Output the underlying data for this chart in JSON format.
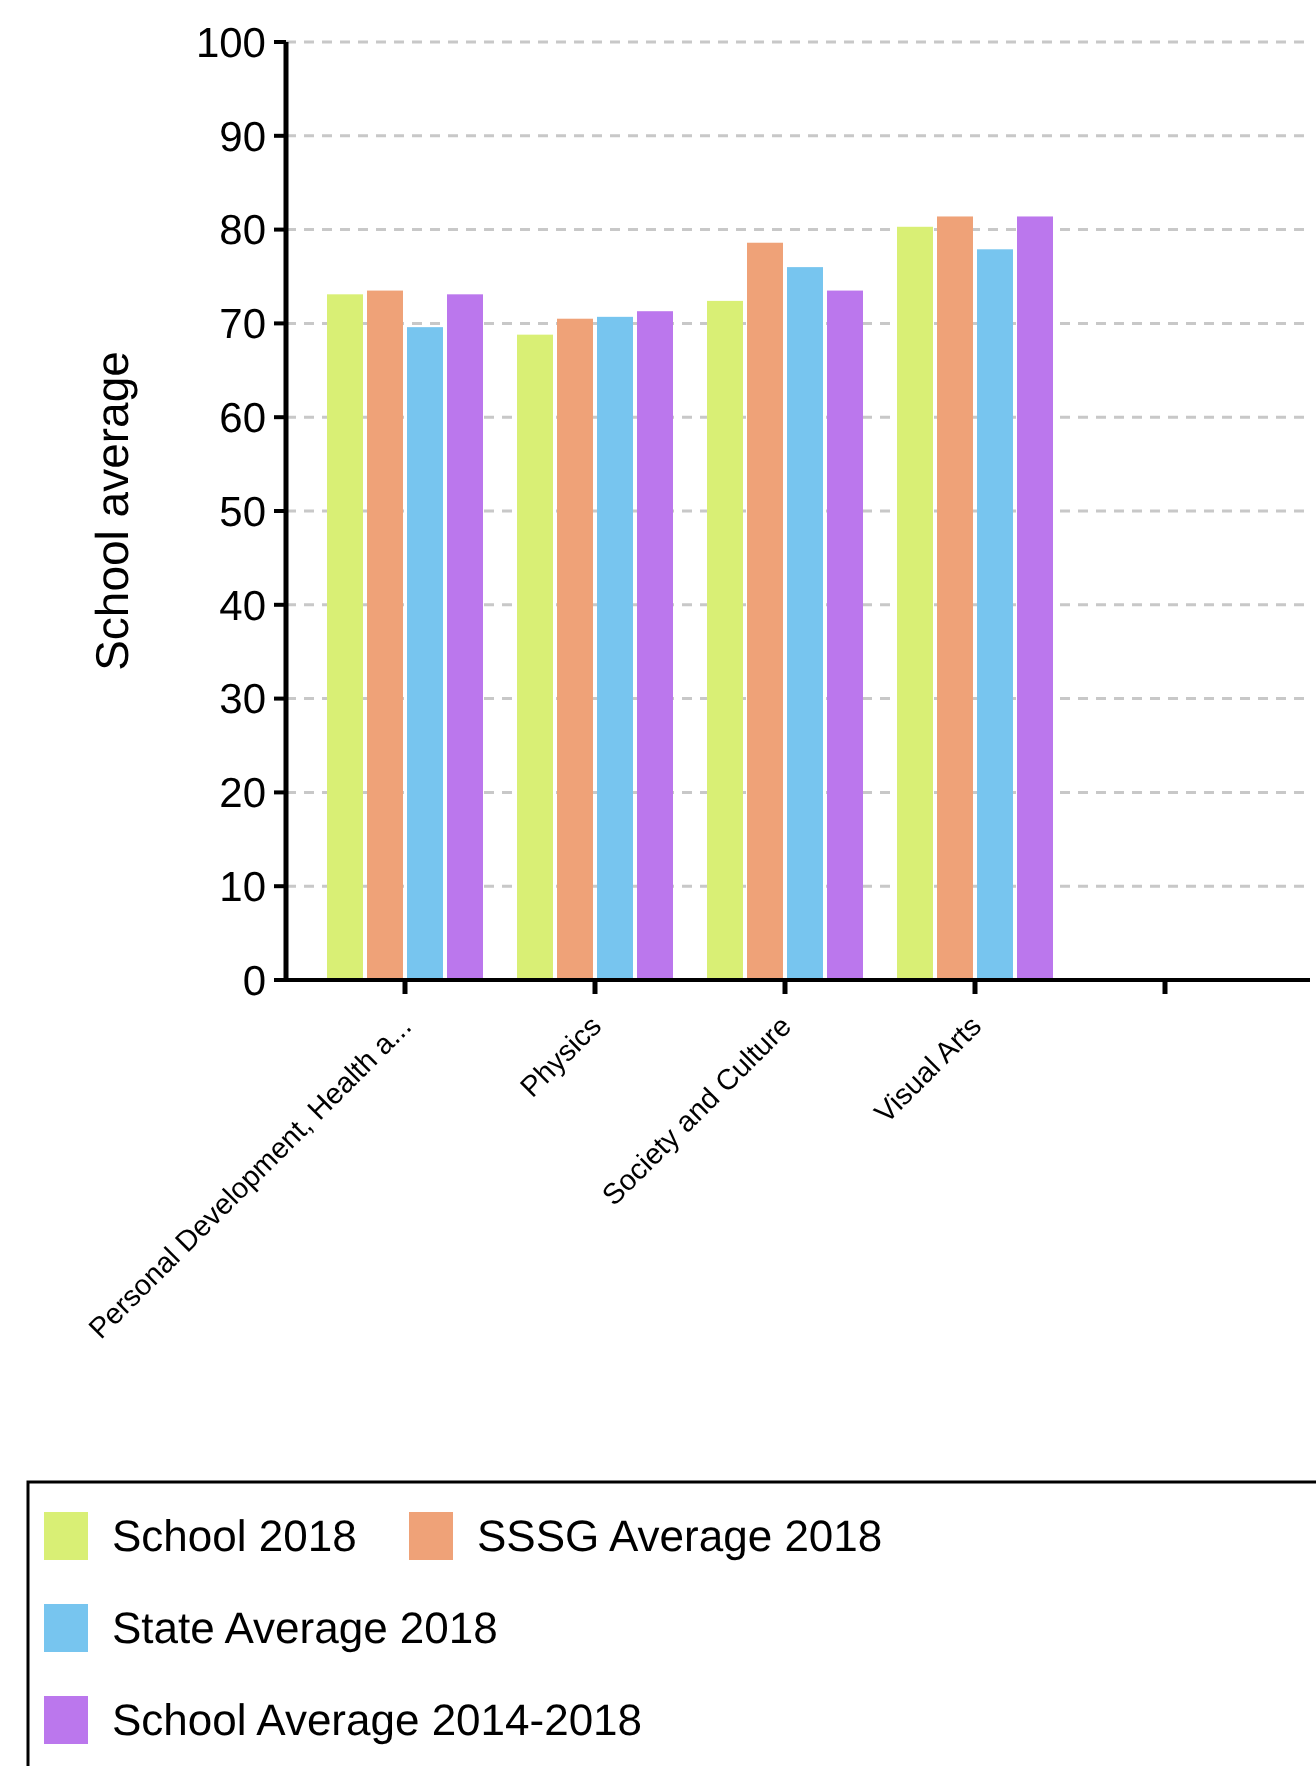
{
  "chart_data": {
    "type": "bar",
    "ylabel": "School average",
    "categories": [
      "Personal Development, Health a...",
      "Physics",
      "Society and Culture",
      "Visual Arts",
      null
    ],
    "series": [
      {
        "name": "School 2018",
        "color": "#d9ef75",
        "values": [
          73.1,
          68.8,
          72.4,
          80.3,
          null
        ]
      },
      {
        "name": "SSSG Average 2018",
        "color": "#efa278",
        "values": [
          73.5,
          70.5,
          78.6,
          81.4,
          null
        ]
      },
      {
        "name": "State Average 2018",
        "color": "#77c5ef",
        "values": [
          69.6,
          70.7,
          76.0,
          77.9,
          null
        ]
      },
      {
        "name": "School Average 2014-2018",
        "color": "#bb77ed",
        "values": [
          73.1,
          71.3,
          73.5,
          81.4,
          null
        ]
      }
    ],
    "ylim": [
      0,
      100
    ],
    "yticks": [
      0,
      10,
      20,
      30,
      40,
      50,
      60,
      70,
      80,
      90,
      100
    ],
    "grid": "y",
    "legend": "bottom"
  }
}
